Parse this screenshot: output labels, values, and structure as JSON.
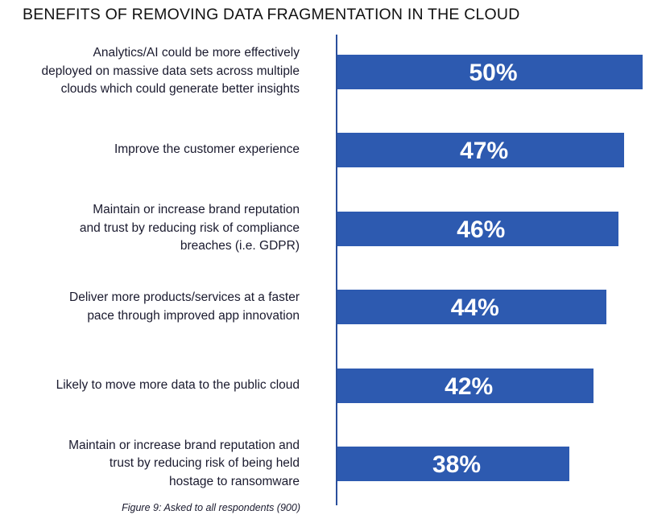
{
  "title": "BENEFITS OF REMOVING DATA FRAGMENTATION IN THE CLOUD",
  "caption": "Figure 9: Asked to all respondents (900)",
  "colors": {
    "bar": "#2d5ab0",
    "axis": "#2a4f9c",
    "label_text": "#ffffff"
  },
  "chart_data": {
    "type": "bar",
    "orientation": "horizontal",
    "title": "BENEFITS OF REMOVING DATA FRAGMENTATION IN THE CLOUD",
    "xlim": [
      0,
      50
    ],
    "grid": false,
    "categories": [
      "Analytics/AI could be more effectively\ndeployed on massive data sets across multiple\nclouds which could generate better insights",
      "Improve the customer experience",
      "Maintain or increase brand reputation\nand trust by reducing risk of compliance\nbreaches (i.e. GDPR)",
      "Deliver more products/services at a faster\npace through improved app innovation",
      "Likely to move more data to the public cloud",
      "Maintain or increase brand reputation and\ntrust by reducing risk of being held\nhostage to ransomware"
    ],
    "values": [
      50,
      47,
      46,
      44,
      42,
      38
    ],
    "data_labels": [
      "50%",
      "47%",
      "46%",
      "44%",
      "42%",
      "38%"
    ]
  }
}
